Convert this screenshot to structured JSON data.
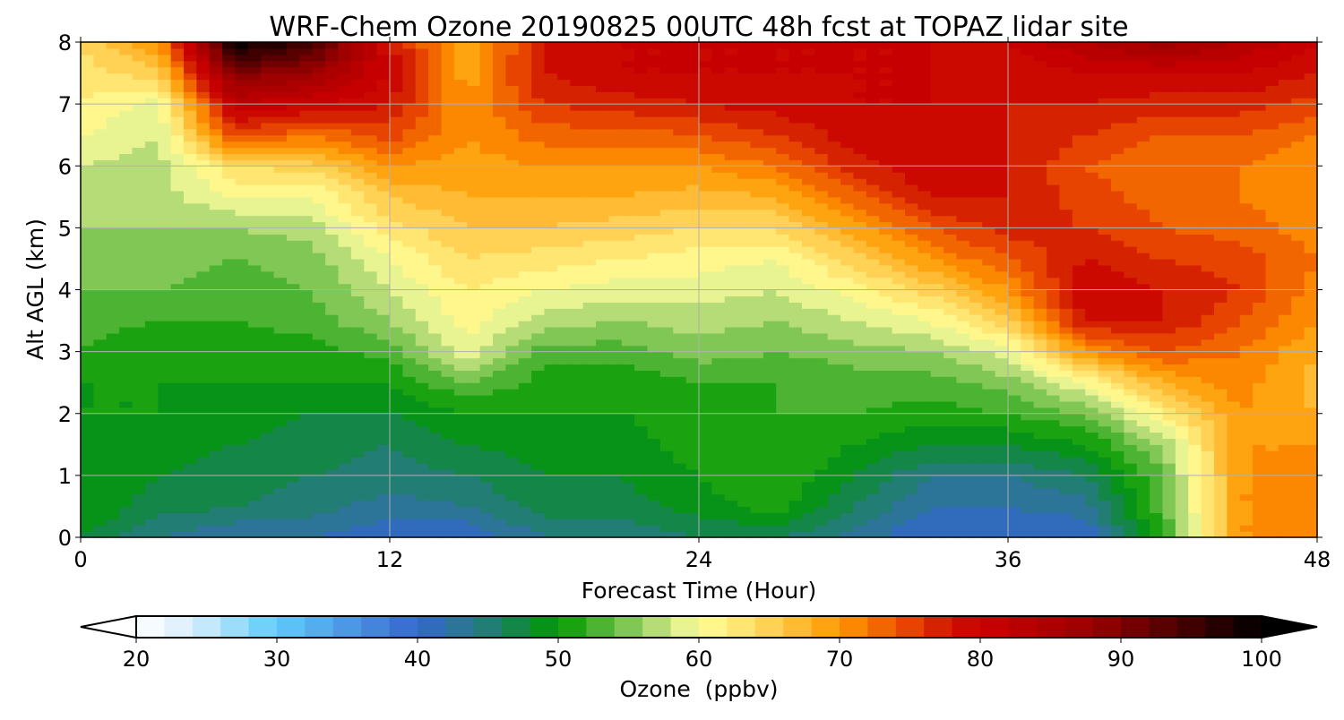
{
  "chart_data": {
    "type": "heatmap",
    "title": "WRF-Chem Ozone 20190825 00UTC 48h fcst at TOPAZ lidar site",
    "xlabel": "Forecast Time (Hour)",
    "ylabel": "Alt AGL (km)",
    "xlim": [
      0,
      48
    ],
    "ylim": [
      0,
      8
    ],
    "xticks": [
      "0",
      "12",
      "24",
      "36",
      "48"
    ],
    "yticks": [
      "0",
      "1",
      "2",
      "3",
      "4",
      "5",
      "6",
      "7",
      "8"
    ],
    "grid": true,
    "x": [
      0,
      3,
      6,
      9,
      12,
      15,
      18,
      21,
      24,
      27,
      30,
      33,
      36,
      39,
      42,
      45,
      48
    ],
    "y": [
      0,
      0.5,
      1,
      1.5,
      2,
      2.5,
      3,
      3.5,
      4,
      4.5,
      5,
      5.5,
      6,
      6.5,
      7,
      7.5,
      8
    ],
    "z_by_time": [
      [
        48,
        50,
        50,
        50,
        50,
        50,
        52,
        53,
        54,
        55,
        56,
        57,
        58,
        60,
        62,
        63,
        64
      ],
      [
        44,
        47,
        48,
        49,
        50,
        50,
        50,
        52,
        54,
        55,
        56,
        57,
        57,
        58,
        59,
        65,
        70
      ],
      [
        42,
        46,
        47,
        48,
        49,
        50,
        51,
        52,
        53,
        54,
        56,
        60,
        64,
        75,
        82,
        90,
        100
      ],
      [
        42,
        45,
        46,
        47,
        48,
        50,
        51,
        53,
        54,
        55,
        57,
        60,
        65,
        72,
        80,
        87,
        95
      ],
      [
        40,
        43,
        45,
        46,
        48,
        50,
        53,
        56,
        58,
        60,
        63,
        66,
        70,
        75,
        78,
        80,
        78
      ],
      [
        40,
        44,
        46,
        48,
        50,
        54,
        59,
        61,
        62,
        64,
        66,
        68,
        69,
        70,
        70,
        69,
        68
      ],
      [
        44,
        47,
        48,
        49,
        50,
        51,
        53,
        57,
        60,
        63,
        66,
        68,
        70,
        73,
        76,
        78,
        78
      ],
      [
        44,
        47,
        48,
        49,
        50,
        50,
        53,
        56,
        59,
        62,
        65,
        68,
        70,
        73,
        77,
        80,
        80
      ],
      [
        46,
        49,
        50,
        51,
        51,
        52,
        55,
        57,
        59,
        61,
        64,
        67,
        70,
        74,
        78,
        80,
        80
      ],
      [
        46,
        51,
        52,
        52,
        52,
        52,
        54,
        56,
        58,
        60,
        64,
        68,
        72,
        76,
        79,
        80,
        80
      ],
      [
        43,
        46,
        48,
        50,
        52,
        53,
        55,
        58,
        61,
        65,
        69,
        73,
        77,
        79,
        80,
        80,
        80
      ],
      [
        40,
        42,
        44,
        48,
        51,
        53,
        56,
        60,
        65,
        70,
        74,
        78,
        80,
        80,
        80,
        80,
        80
      ],
      [
        40,
        42,
        44,
        48,
        52,
        55,
        59,
        65,
        70,
        74,
        77,
        78,
        78,
        78,
        78,
        78,
        80
      ],
      [
        40,
        43,
        46,
        50,
        54,
        60,
        70,
        78,
        80,
        78,
        76,
        75,
        74,
        76,
        78,
        80,
        84
      ],
      [
        52,
        53,
        54,
        56,
        62,
        68,
        74,
        78,
        78,
        76,
        74,
        73,
        72,
        74,
        77,
        80,
        87
      ],
      [
        70,
        70,
        70,
        70,
        70,
        71,
        72,
        74,
        76,
        75,
        73,
        72,
        72,
        74,
        77,
        80,
        84
      ],
      [
        70,
        70,
        70,
        70,
        68,
        67,
        68,
        70,
        71,
        72,
        71,
        70,
        70,
        72,
        75,
        78,
        80
      ]
    ],
    "colorbar": {
      "label": "Ozone  (ppbv)",
      "min": 20,
      "max": 100,
      "step": 2,
      "ticks": [
        "20",
        "30",
        "40",
        "50",
        "60",
        "70",
        "80",
        "90",
        "100"
      ],
      "extend": "both"
    },
    "colormap_stops": [
      [
        20,
        "#ffffff"
      ],
      [
        24,
        "#d8eefc"
      ],
      [
        30,
        "#5ecbfa"
      ],
      [
        36,
        "#4a8ee0"
      ],
      [
        40,
        "#3366cc"
      ],
      [
        44,
        "#2a7a88"
      ],
      [
        46,
        "#1a8060"
      ],
      [
        50,
        "#009900"
      ],
      [
        52,
        "#33aa22"
      ],
      [
        56,
        "#99d066"
      ],
      [
        58,
        "#d0e888"
      ],
      [
        60,
        "#ffff99"
      ],
      [
        64,
        "#ffdd66"
      ],
      [
        70,
        "#ff9900"
      ],
      [
        74,
        "#ee5500"
      ],
      [
        78,
        "#cc1100"
      ],
      [
        80,
        "#cc0000"
      ],
      [
        88,
        "#990000"
      ],
      [
        96,
        "#330000"
      ],
      [
        100,
        "#000000"
      ]
    ]
  }
}
